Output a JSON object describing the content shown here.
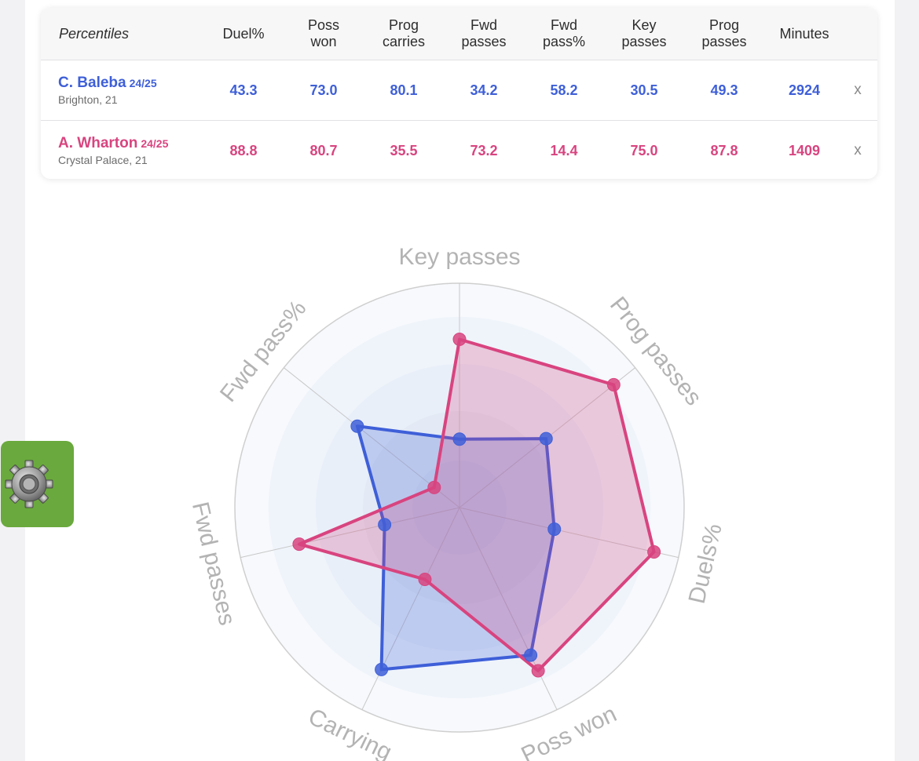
{
  "table": {
    "header": {
      "label": "Percentiles",
      "columns": [
        "Duel%",
        "Poss\nwon",
        "Prog\ncarries",
        "Fwd\npasses",
        "Fwd\npass%",
        "Key\npasses",
        "Prog\npasses",
        "Minutes"
      ]
    },
    "players": [
      {
        "name": "C. Baleba",
        "season": "24/25",
        "club": "Brighton, 21",
        "values": [
          "43.3",
          "73.0",
          "80.1",
          "34.2",
          "58.2",
          "30.5",
          "49.3",
          "2924"
        ],
        "remove_label": "x",
        "color": "#3e5fd8"
      },
      {
        "name": "A. Wharton",
        "season": "24/25",
        "club": "Crystal Palace, 21",
        "values": [
          "88.8",
          "80.7",
          "35.5",
          "73.2",
          "14.4",
          "75.0",
          "87.8",
          "1409"
        ],
        "remove_label": "x",
        "color": "#d8447f"
      }
    ]
  },
  "settings_button": {
    "icon": "gear-icon",
    "color": "#6aa93d"
  },
  "chart_data": {
    "type": "radar",
    "axes": [
      "Key passes",
      "Prog passes",
      "Duels%",
      "Poss won",
      "Carrying",
      "Fwd passes",
      "Fwd pass%"
    ],
    "range": [
      0,
      100
    ],
    "grid": true,
    "series": [
      {
        "name": "C. Baleba",
        "values": [
          30.5,
          49.3,
          43.3,
          73.0,
          80.1,
          34.2,
          58.2
        ],
        "color": "#3e5fd8"
      },
      {
        "name": "A. Wharton",
        "values": [
          75.0,
          87.8,
          88.8,
          80.7,
          35.5,
          73.2,
          14.4
        ],
        "color": "#d8447f"
      }
    ]
  }
}
